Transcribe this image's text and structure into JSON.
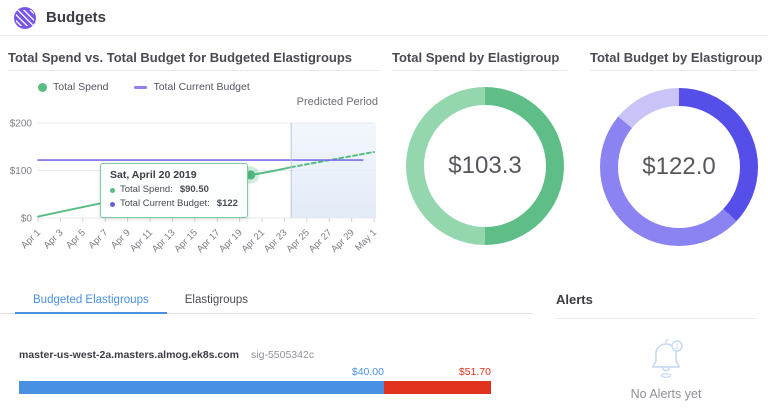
{
  "header": {
    "title": "Budgets"
  },
  "spend_chart": {
    "title": "Total Spend vs. Total Budget for Budgeted Elastigroups",
    "legend": [
      {
        "label": "Total Spend",
        "color": "#57bd85"
      },
      {
        "label": "Total Current Budget",
        "color": "#8a82f0"
      }
    ],
    "predicted_label": "Predicted Period",
    "tooltip": {
      "date": "Sat, April 20 2019",
      "rows": [
        {
          "label": "Total Spend:",
          "value": "$90.50",
          "color": "#57bd85"
        },
        {
          "label": "Total Current Budget:",
          "value": "$122",
          "color": "#665ce9"
        }
      ]
    },
    "chart_data": {
      "type": "line",
      "title": "Total Spend vs. Total Budget for Budgeted Elastigroups",
      "ylim": [
        0,
        200
      ],
      "days_total": 30,
      "y_ticks": [
        [
          0,
          "$0"
        ],
        [
          100,
          "$100"
        ],
        [
          200,
          "$200"
        ]
      ],
      "x_ticks": [
        [
          0,
          "Apr 1"
        ],
        [
          2,
          "Apr 3"
        ],
        [
          4,
          "Apr 5"
        ],
        [
          6,
          "Apr 7"
        ],
        [
          8,
          "Apr 9"
        ],
        [
          10,
          "Apr 11"
        ],
        [
          12,
          "Apr 13"
        ],
        [
          14,
          "Apr 15"
        ],
        [
          16,
          "Apr 17"
        ],
        [
          18,
          "Apr 19"
        ],
        [
          20,
          "Apr 21"
        ],
        [
          22,
          "Apr 23"
        ],
        [
          24,
          "Apr 25"
        ],
        [
          26,
          "Apr 27"
        ],
        [
          28,
          "Apr 29"
        ],
        [
          30,
          "May 1"
        ]
      ],
      "series": [
        {
          "name": "Total Spend",
          "style": "solid",
          "color": "#57bd85",
          "points": [
            [
              0,
              3
            ],
            [
              2,
              13
            ],
            [
              4,
              23
            ],
            [
              6,
              33
            ],
            [
              8,
              42
            ],
            [
              10,
              51
            ],
            [
              12,
              60
            ],
            [
              14,
              69
            ],
            [
              16,
              78
            ],
            [
              18,
              86
            ],
            [
              19,
              90.5
            ],
            [
              21,
              99
            ],
            [
              22.6,
              107
            ]
          ]
        },
        {
          "name": "Total Spend (predicted)",
          "style": "dashed",
          "color": "#57bd85",
          "points": [
            [
              22.6,
              107
            ],
            [
              30,
              139
            ]
          ]
        },
        {
          "name": "Total Current Budget",
          "style": "solid",
          "color": "#7a6fe9",
          "points": [
            [
              0,
              122
            ],
            [
              29,
              122
            ]
          ]
        }
      ],
      "predicted_from_day": 22.6,
      "marker": {
        "day": 19,
        "value": 90.5,
        "color": "#4fb87f"
      },
      "grid": true,
      "legend_position": "top-left"
    }
  },
  "spend_donut": {
    "title": "Total Spend by Elastigroup",
    "center_value": "$103.3",
    "chart_data": {
      "type": "pie",
      "total_label": "$103.3",
      "segments": [
        {
          "pct": 50,
          "color": "#5fbe87"
        },
        {
          "pct": 50,
          "color": "#94d6ad"
        }
      ]
    }
  },
  "budget_donut": {
    "title": "Total Budget by Elastigroup",
    "center_value": "$122.0",
    "chart_data": {
      "type": "pie",
      "total_label": "$122.0",
      "segments": [
        {
          "pct": 37,
          "color": "#564ee8"
        },
        {
          "pct": 49,
          "color": "#8b83f1"
        },
        {
          "pct": 14,
          "color": "#c9c4f8"
        }
      ]
    }
  },
  "tabs": [
    {
      "label": "Budgeted Elastigroups",
      "active": true
    },
    {
      "label": "Elastigroups",
      "active": false
    }
  ],
  "elastigroup_row": {
    "name": "master-us-west-2a.masters.almog.ek8s.com",
    "sig": "sig-5505342c",
    "bar": {
      "budget_label": "$40.00",
      "budget_value": 40.0,
      "total_label": "$51.70",
      "total_value": 51.7,
      "spend_color": "#4a90e2",
      "over_color": "#e0321d"
    }
  },
  "alerts": {
    "title": "Alerts",
    "empty_text": "No Alerts yet"
  }
}
